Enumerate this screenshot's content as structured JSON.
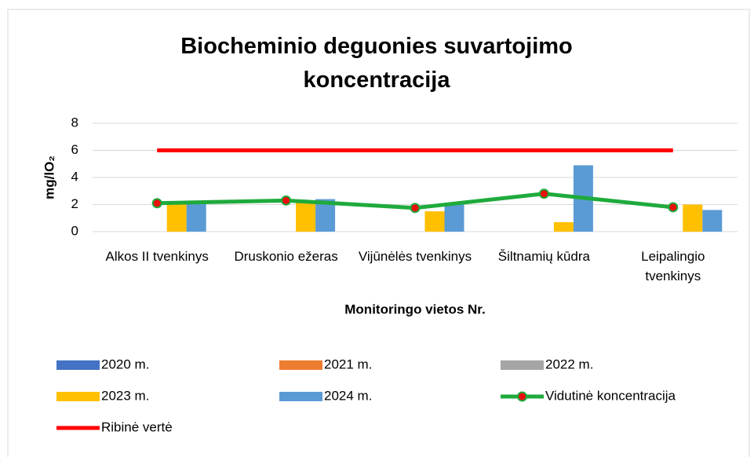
{
  "chart_data": {
    "type": "bar",
    "title": "Biocheminio deguonies suvartojimo koncentracija",
    "y_label": "mg/lO₂",
    "x_label": "Monitoringo vietos Nr.",
    "categories": [
      "Alkos II tvenkinys",
      "Druskonio ežeras",
      "Vijūnėlės tvenkinys",
      "Šiltnamių kūdra",
      "Leipalingio tvenkinys"
    ],
    "ylim": [
      0,
      8
    ],
    "yticks": [
      0,
      2,
      4,
      6,
      8
    ],
    "grid": true,
    "series": [
      {
        "name": "2020 m.",
        "type": "bar",
        "color": "#4472c4",
        "values": [
          null,
          null,
          null,
          null,
          null
        ]
      },
      {
        "name": "2021 m.",
        "type": "bar",
        "color": "#ed7d31",
        "values": [
          null,
          null,
          null,
          null,
          null
        ]
      },
      {
        "name": "2022 m.",
        "type": "bar",
        "color": "#a5a5a5",
        "values": [
          null,
          null,
          null,
          null,
          null
        ]
      },
      {
        "name": "2023 m.",
        "type": "bar",
        "color": "#ffc000",
        "values": [
          2.0,
          2.2,
          1.5,
          0.7,
          2.0
        ]
      },
      {
        "name": "2024 m.",
        "type": "bar",
        "color": "#5b9bd5",
        "values": [
          2.1,
          2.4,
          2.0,
          4.9,
          1.6
        ]
      },
      {
        "name": "Vidutinė koncentracija",
        "type": "line",
        "color": "#1faa3c",
        "marker_color": "#e81010",
        "values": [
          2.1,
          2.3,
          1.75,
          2.8,
          1.8
        ]
      },
      {
        "name": "Ribinė vertė",
        "type": "line",
        "color": "#ff0000",
        "values": [
          6,
          6,
          6,
          6,
          6
        ]
      }
    ]
  }
}
